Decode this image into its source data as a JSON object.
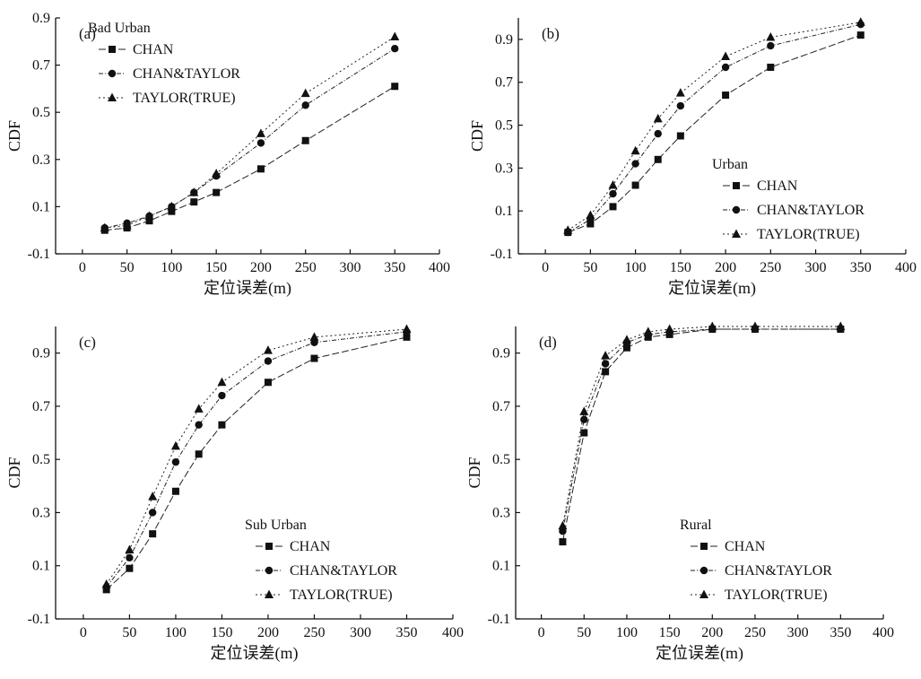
{
  "chart_data": [
    {
      "type": "line",
      "panel_label": "(a)",
      "legend_title": "Bad Urban",
      "legend_position": "top-left",
      "xlabel": "定位误差(m)",
      "ylabel": "CDF",
      "xlim": [
        -30,
        400
      ],
      "ylim": [
        -0.1,
        0.9
      ],
      "xticks": [
        0,
        50,
        100,
        150,
        200,
        250,
        300,
        350,
        400
      ],
      "yticks": [
        -0.1,
        0.1,
        0.3,
        0.5,
        0.7,
        0.9
      ],
      "x": [
        25,
        50,
        75,
        100,
        125,
        150,
        200,
        250,
        350
      ],
      "series": [
        {
          "name": "CHAN",
          "marker": "square",
          "values": [
            0.0,
            0.01,
            0.04,
            0.08,
            0.12,
            0.16,
            0.26,
            0.38,
            0.61
          ]
        },
        {
          "name": "CHAN&TAYLOR",
          "marker": "circle",
          "values": [
            0.01,
            0.03,
            0.06,
            0.1,
            0.16,
            0.23,
            0.37,
            0.53,
            0.77
          ]
        },
        {
          "name": "TAYLOR(TRUE)",
          "marker": "triangle",
          "values": [
            0.01,
            0.02,
            0.06,
            0.1,
            0.16,
            0.24,
            0.41,
            0.58,
            0.82
          ]
        }
      ]
    },
    {
      "type": "line",
      "panel_label": "(b)",
      "legend_title": "Urban",
      "legend_position": "right",
      "xlabel": "定位误差(m)",
      "ylabel": "CDF",
      "xlim": [
        -30,
        400
      ],
      "ylim": [
        -0.1,
        1.0
      ],
      "xticks": [
        0,
        50,
        100,
        150,
        200,
        250,
        300,
        350,
        400
      ],
      "yticks": [
        -0.1,
        0.1,
        0.3,
        0.5,
        0.7,
        0.9
      ],
      "x": [
        25,
        50,
        75,
        100,
        125,
        150,
        200,
        250,
        350
      ],
      "series": [
        {
          "name": "CHAN",
          "marker": "square",
          "values": [
            0.0,
            0.04,
            0.12,
            0.22,
            0.34,
            0.45,
            0.64,
            0.77,
            0.92
          ]
        },
        {
          "name": "CHAN&TAYLOR",
          "marker": "circle",
          "values": [
            0.0,
            0.06,
            0.18,
            0.32,
            0.46,
            0.59,
            0.77,
            0.87,
            0.97
          ]
        },
        {
          "name": "TAYLOR(TRUE)",
          "marker": "triangle",
          "values": [
            0.01,
            0.08,
            0.22,
            0.38,
            0.53,
            0.65,
            0.82,
            0.91,
            0.98
          ]
        }
      ]
    },
    {
      "type": "line",
      "panel_label": "(c)",
      "legend_title": "Sub Urban",
      "legend_position": "bottom-right",
      "xlabel": "定位误差(m)",
      "ylabel": "CDF",
      "xlim": [
        -30,
        400
      ],
      "ylim": [
        -0.1,
        1.0
      ],
      "xticks": [
        0,
        50,
        100,
        150,
        200,
        250,
        300,
        350,
        400
      ],
      "yticks": [
        -0.1,
        0.1,
        0.3,
        0.5,
        0.7,
        0.9
      ],
      "x": [
        25,
        50,
        75,
        100,
        125,
        150,
        200,
        250,
        350
      ],
      "series": [
        {
          "name": "CHAN",
          "marker": "square",
          "values": [
            0.01,
            0.09,
            0.22,
            0.38,
            0.52,
            0.63,
            0.79,
            0.88,
            0.96
          ]
        },
        {
          "name": "CHAN&TAYLOR",
          "marker": "circle",
          "values": [
            0.02,
            0.13,
            0.3,
            0.49,
            0.63,
            0.74,
            0.87,
            0.94,
            0.98
          ]
        },
        {
          "name": "TAYLOR(TRUE)",
          "marker": "triangle",
          "values": [
            0.03,
            0.16,
            0.36,
            0.55,
            0.69,
            0.79,
            0.91,
            0.96,
            0.99
          ]
        }
      ]
    },
    {
      "type": "line",
      "panel_label": "(d)",
      "legend_title": "Rural",
      "legend_position": "bottom-right",
      "xlabel": "定位误差(m)",
      "ylabel": "CDF",
      "xlim": [
        -30,
        400
      ],
      "ylim": [
        -0.1,
        1.0
      ],
      "xticks": [
        0,
        50,
        100,
        150,
        200,
        250,
        300,
        350,
        400
      ],
      "yticks": [
        -0.1,
        0.1,
        0.3,
        0.5,
        0.7,
        0.9
      ],
      "x": [
        25,
        50,
        75,
        100,
        125,
        150,
        200,
        250,
        350
      ],
      "series": [
        {
          "name": "CHAN",
          "marker": "square",
          "values": [
            0.19,
            0.6,
            0.83,
            0.92,
            0.96,
            0.97,
            0.99,
            0.99,
            0.99
          ]
        },
        {
          "name": "CHAN&TAYLOR",
          "marker": "circle",
          "values": [
            0.23,
            0.65,
            0.86,
            0.94,
            0.97,
            0.98,
            0.99,
            0.99,
            0.99
          ]
        },
        {
          "name": "TAYLOR(TRUE)",
          "marker": "triangle",
          "values": [
            0.25,
            0.68,
            0.89,
            0.95,
            0.98,
            0.99,
            1.0,
            1.0,
            1.0
          ]
        }
      ]
    }
  ]
}
